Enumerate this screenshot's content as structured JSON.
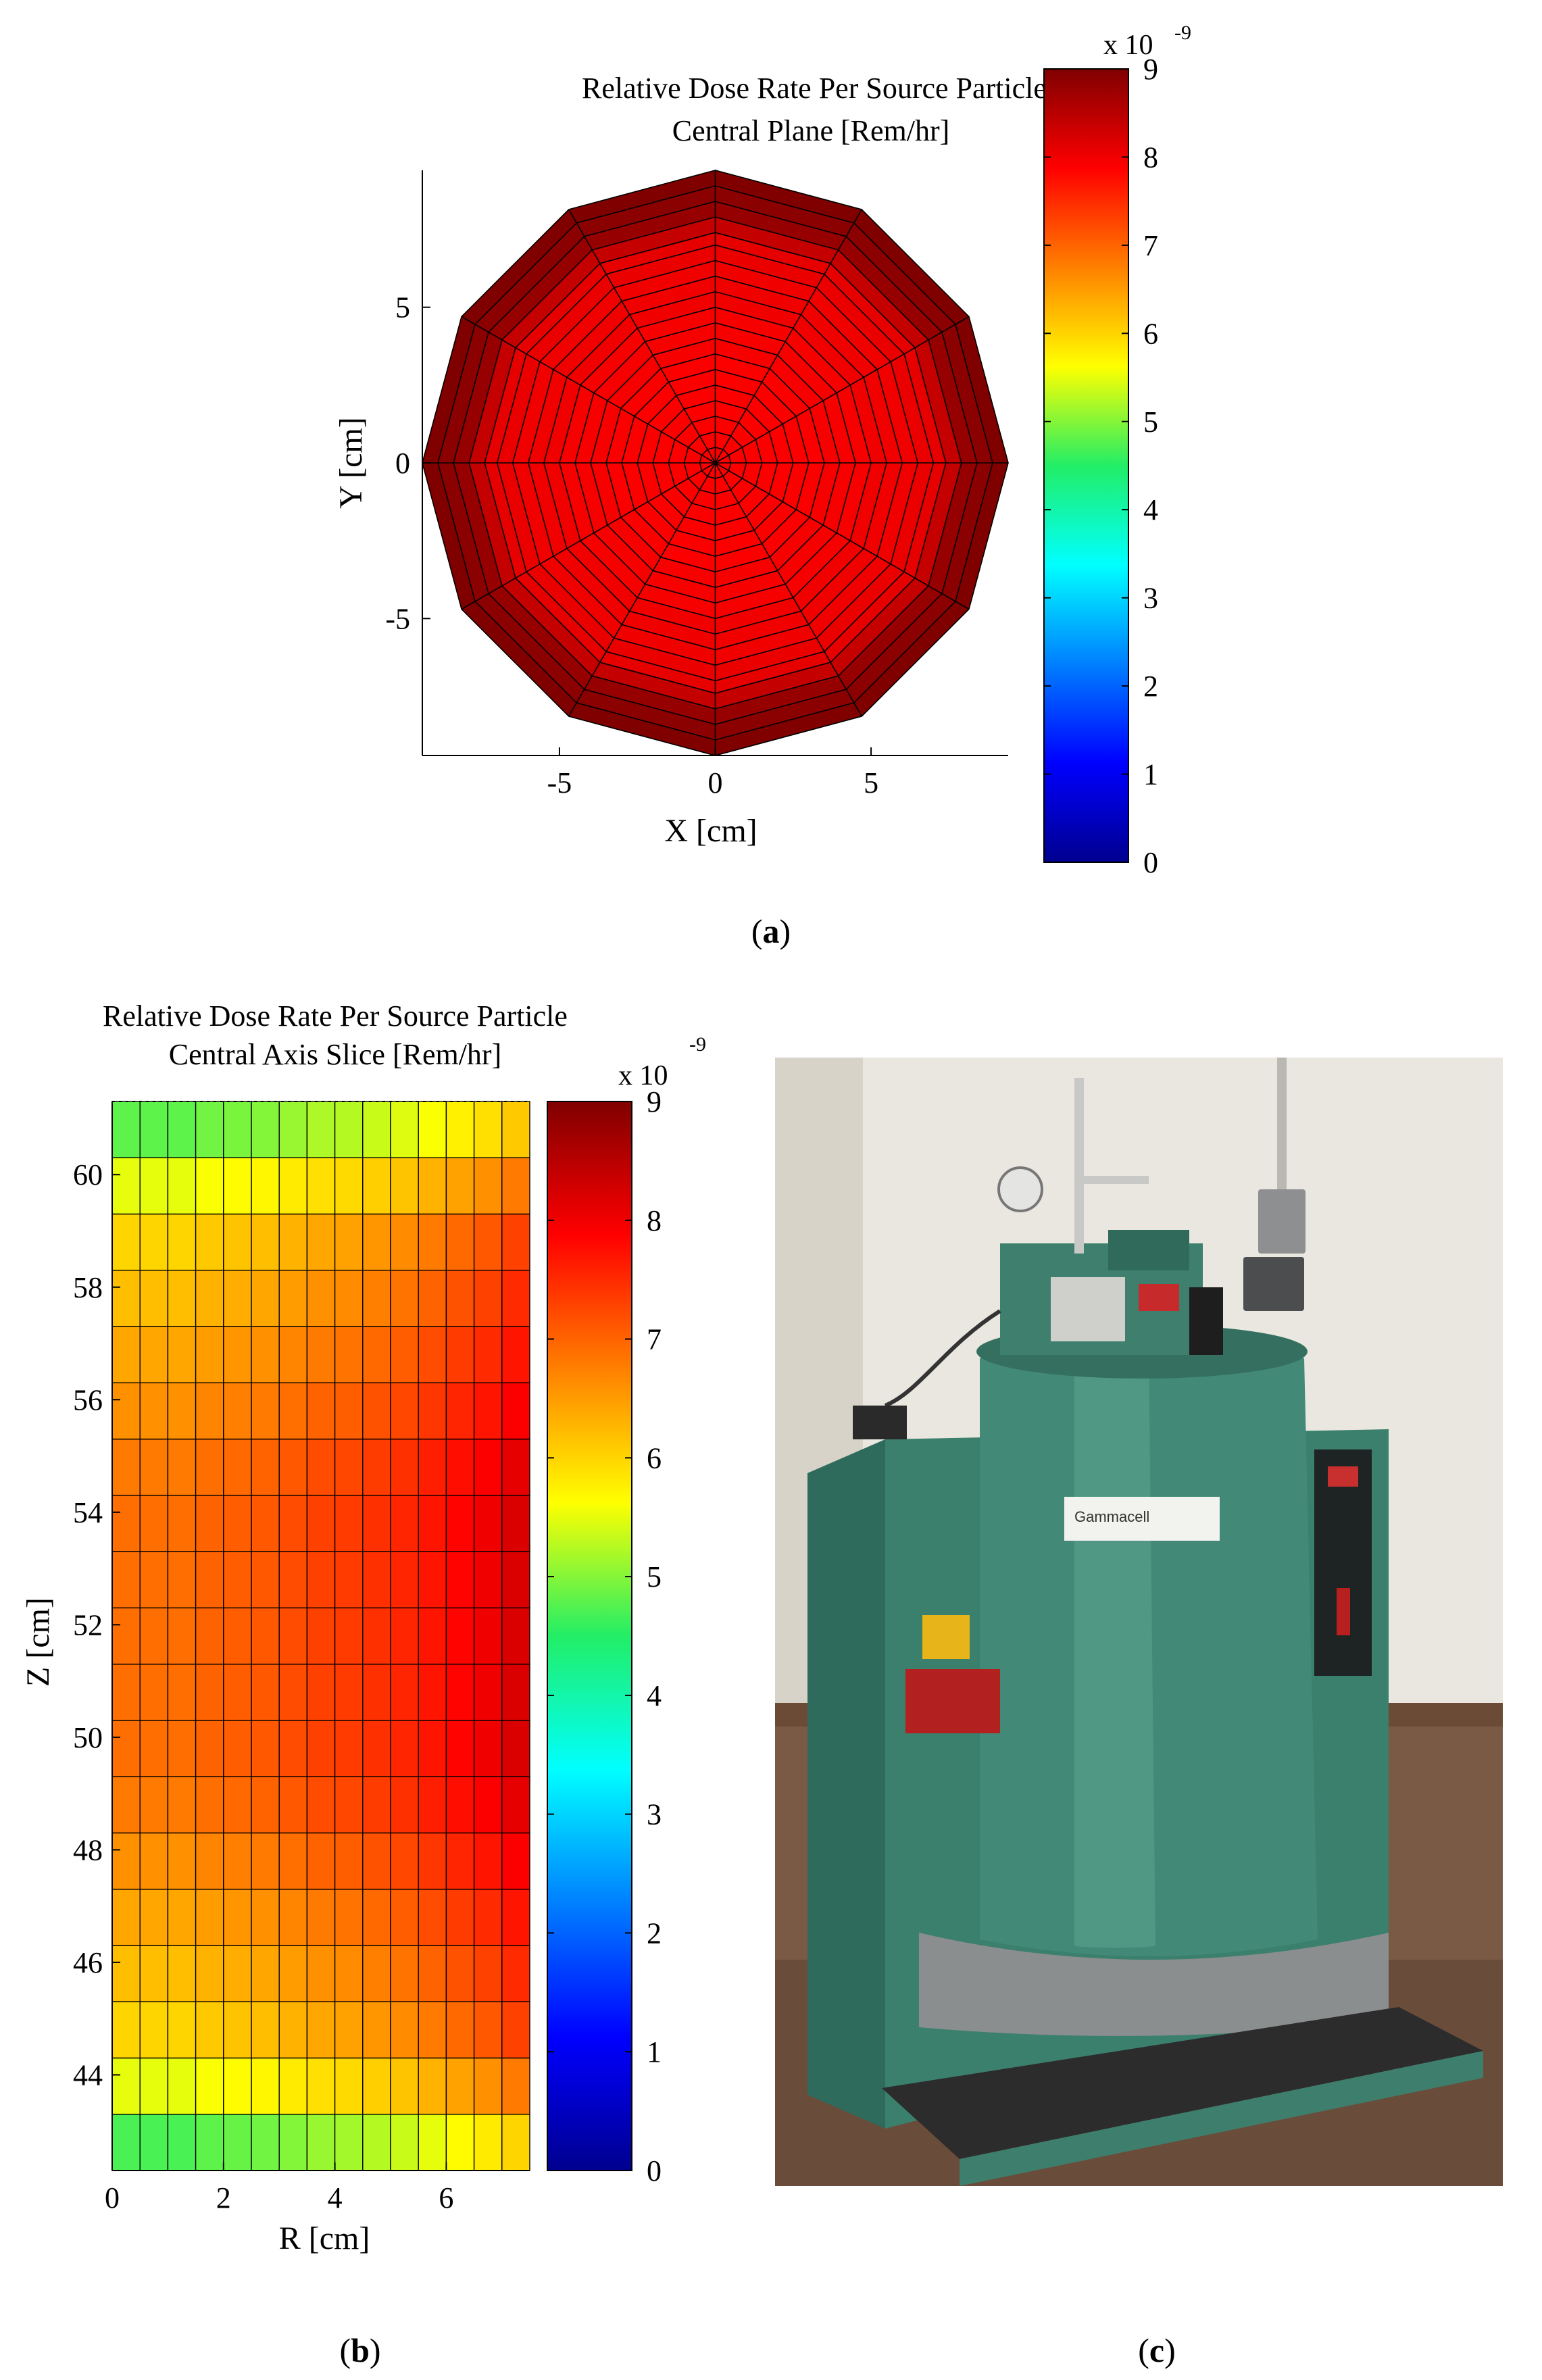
{
  "panels": [
    {
      "panel_label": "a",
      "title_line1": "Relative Dose Rate Per Source Particle",
      "title_line2": "Central Plane [Rem/hr]",
      "xlabel": "X [cm]",
      "ylabel": "Y [cm]",
      "colorbar": {
        "min": 0,
        "max": 9,
        "exponent_label": "x 10",
        "exponent": "-9",
        "ticks": [
          "0",
          "1",
          "2",
          "3",
          "4",
          "5",
          "6",
          "7",
          "8",
          "9"
        ]
      }
    },
    {
      "panel_label": "b",
      "title_line1": "Relative Dose Rate Per Source Particle",
      "title_line2": "Central Axis Slice [Rem/hr]",
      "xlabel": "R [cm]",
      "ylabel": "Z [cm]",
      "colorbar": {
        "min": 0,
        "max": 9,
        "exponent_label": "x 10",
        "exponent": "-9",
        "ticks": [
          "0",
          "1",
          "2",
          "3",
          "4",
          "5",
          "6",
          "7",
          "8",
          "9"
        ]
      }
    },
    {
      "panel_label": "c",
      "photo_label": "Gammacell"
    }
  ],
  "chart_data": [
    {
      "type": "heatmap",
      "projection": "polar",
      "title": "Relative Dose Rate Per Source Particle Central Plane [Rem/hr]",
      "xlabel": "X [cm]",
      "ylabel": "Y [cm]",
      "xlim": [
        -9.4,
        9.4
      ],
      "ylim": [
        -9.4,
        9.4
      ],
      "xticks": [
        -5,
        0,
        5
      ],
      "yticks": [
        -5,
        0,
        5
      ],
      "outer_radius": 9.4,
      "angular_sectors": 12,
      "radial_rings": [
        0.5,
        1,
        1.5,
        2,
        2.5,
        3,
        3.5,
        4,
        4.5,
        5,
        5.5,
        6,
        6.5,
        7,
        7.4,
        7.9,
        8.4,
        8.9,
        9.4
      ],
      "ring_values": [
        7.9,
        7.9,
        7.9,
        7.9,
        7.9,
        7.9,
        7.9,
        7.95,
        7.95,
        7.95,
        8.0,
        8.0,
        8.0,
        8.05,
        8.1,
        8.4,
        8.8,
        8.9,
        9.0
      ],
      "clim": [
        0,
        9
      ],
      "unit_scale": 1e-09
    },
    {
      "type": "heatmap",
      "title": "Relative Dose Rate Per Source Particle Central Axis Slice [Rem/hr]",
      "xlabel": "R [cm]",
      "ylabel": "Z [cm]",
      "xlim": [
        0,
        7.5
      ],
      "ylim": [
        42.3,
        61.3
      ],
      "xticks": [
        0,
        2,
        4,
        6
      ],
      "yticks": [
        44,
        46,
        48,
        50,
        52,
        54,
        56,
        58,
        60
      ],
      "r_edges": [
        0,
        0.5,
        1,
        1.5,
        2,
        2.5,
        3,
        3.5,
        4,
        4.5,
        5,
        5.5,
        6,
        6.5,
        7,
        7.5
      ],
      "z_edges": [
        42.3,
        43.3,
        44.3,
        45.3,
        46.3,
        47.3,
        48.3,
        49.3,
        50.3,
        51.3,
        52.3,
        53.3,
        54.3,
        55.3,
        56.3,
        57.3,
        58.3,
        59.3,
        60.3,
        61.3
      ],
      "row_base": [
        4.7,
        5.5,
        6.0,
        6.2,
        6.4,
        6.6,
        6.8,
        6.9,
        6.9,
        6.9,
        6.9,
        6.9,
        6.8,
        6.6,
        6.4,
        6.2,
        6.0,
        5.5,
        4.8
      ],
      "col_offsets": [
        0,
        0,
        0,
        0.1,
        0.15,
        0.2,
        0.3,
        0.4,
        0.45,
        0.55,
        0.65,
        0.8,
        0.95,
        1.1,
        1.3
      ],
      "clim": [
        0,
        9
      ],
      "unit_scale": 1e-09
    }
  ]
}
